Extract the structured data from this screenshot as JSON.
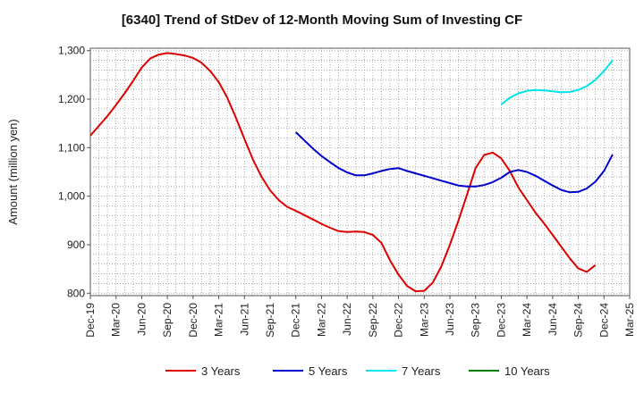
{
  "chart_data": {
    "type": "line",
    "title": "[6340]  Trend of StDev of 12-Month Moving Sum of Investing CF",
    "ylabel": "Amount (million yen)",
    "xlabel": "",
    "ylim": [
      795,
      1305
    ],
    "yticks": [
      800,
      900,
      1000,
      1100,
      1200,
      1300
    ],
    "ytick_labels": [
      "800",
      "900",
      "1,000",
      "1,100",
      "1,200",
      "1,300"
    ],
    "xticks": [
      "Dec-19",
      "Mar-20",
      "Jun-20",
      "Sep-20",
      "Dec-20",
      "Mar-21",
      "Jun-21",
      "Sep-21",
      "Dec-21",
      "Mar-22",
      "Jun-22",
      "Sep-22",
      "Dec-22",
      "Mar-23",
      "Jun-23",
      "Sep-23",
      "Dec-23",
      "Mar-24",
      "Jun-24",
      "Sep-24",
      "Dec-24",
      "Mar-25"
    ],
    "x_start": "Dec-19",
    "grid": true,
    "legend_position": "bottom",
    "series": [
      {
        "name": "3 Years",
        "color": "#dd0000",
        "start_month": 0,
        "values": [
          1125,
          1145,
          1165,
          1188,
          1212,
          1238,
          1265,
          1284,
          1292,
          1295,
          1293,
          1290,
          1285,
          1275,
          1258,
          1235,
          1203,
          1162,
          1118,
          1075,
          1040,
          1012,
          992,
          978,
          970,
          961,
          952,
          943,
          935,
          928,
          926,
          927,
          926,
          920,
          904,
          868,
          838,
          815,
          804,
          805,
          822,
          855,
          900,
          950,
          1003,
          1058,
          1085,
          1090,
          1078,
          1052,
          1018,
          992,
          966,
          944,
          920,
          896,
          872,
          851,
          844,
          858
        ]
      },
      {
        "name": "5 Years",
        "color": "#0000cc",
        "start_month": 24,
        "values": [
          1132,
          1115,
          1098,
          1083,
          1070,
          1058,
          1049,
          1043,
          1043,
          1047,
          1052,
          1056,
          1058,
          1052,
          1047,
          1042,
          1037,
          1032,
          1027,
          1022,
          1020,
          1020,
          1023,
          1029,
          1038,
          1050,
          1054,
          1050,
          1042,
          1032,
          1022,
          1013,
          1008,
          1009,
          1016,
          1030,
          1052,
          1086
        ]
      },
      {
        "name": "7 Years",
        "color": "#00e5ee",
        "start_month": 48,
        "values": [
          1189,
          1203,
          1212,
          1217,
          1219,
          1218,
          1216,
          1214,
          1215,
          1219,
          1227,
          1240,
          1258,
          1280
        ]
      },
      {
        "name": "10 Years",
        "color": "#008000",
        "start_month": 0,
        "values": []
      }
    ]
  }
}
